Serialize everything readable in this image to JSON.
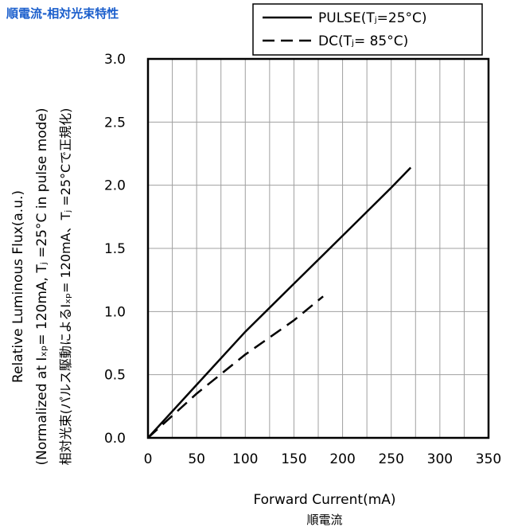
{
  "page_title": "順電流-相対光束特性",
  "chart_data": {
    "type": "line",
    "xlabel": "Forward Current(mA)",
    "xlabel_jp": "順電流",
    "ylabel_lines": [
      "Relative Luminous Flux(a.u.)",
      "(Normalized at Iₓₚ= 120mA,  Tⱼ =25°C in pulse mode)",
      "相対光束(パルス駆動によるIₓₚ= 120mA、Tⱼ =25°Cで正規化)"
    ],
    "xlim": [
      0,
      350
    ],
    "ylim": [
      0,
      3.0
    ],
    "x_ticks": [
      "0",
      "50",
      "100",
      "150",
      "200",
      "250",
      "300",
      "350"
    ],
    "y_ticks": [
      "0.0",
      "0.5",
      "1.0",
      "1.5",
      "2.0",
      "2.5",
      "3.0"
    ],
    "grid": true,
    "legend_position": "top-right",
    "series": [
      {
        "name": "PULSE(Tⱼ=25°C)",
        "style": "solid",
        "color": "#000000",
        "x": [
          0,
          50,
          100,
          150,
          200,
          250,
          270
        ],
        "y": [
          0,
          0.42,
          0.84,
          1.22,
          1.6,
          1.98,
          2.14
        ]
      },
      {
        "name": "DC(Tⱼ= 85°C)",
        "style": "dashed",
        "color": "#000000",
        "x": [
          0,
          50,
          100,
          150,
          180
        ],
        "y": [
          0,
          0.35,
          0.66,
          0.93,
          1.12
        ]
      }
    ]
  }
}
